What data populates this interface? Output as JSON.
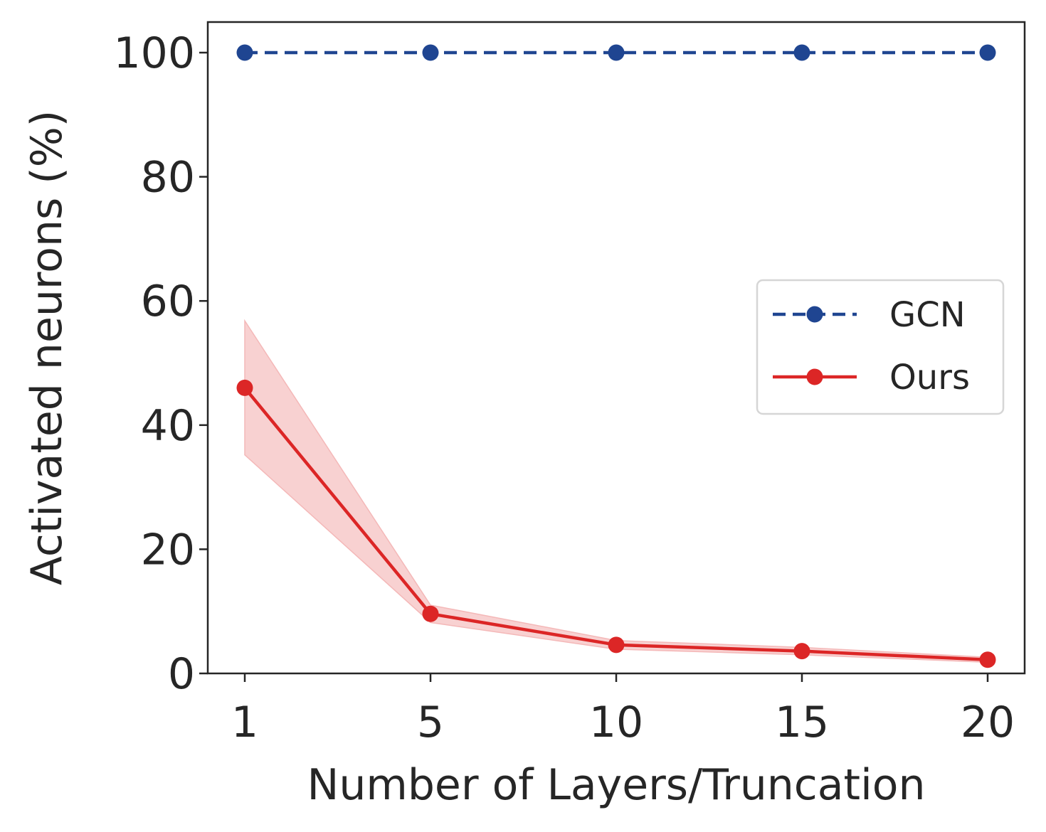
{
  "chart_data": {
    "type": "line",
    "title": "",
    "xlabel": "Number of Layers/Truncation",
    "ylabel": "Activated neurons (%)",
    "x_categories": [
      "1",
      "5",
      "10",
      "15",
      "20"
    ],
    "y_ticks": [
      "0",
      "20",
      "40",
      "60",
      "80",
      "100"
    ],
    "ylim": [
      0,
      105
    ],
    "grid": false,
    "legend_position": "center-right",
    "series": [
      {
        "name": "GCN",
        "color": "#1f4591",
        "line_style": "dashed",
        "marker": "circle",
        "values": [
          100,
          100,
          100,
          100,
          100
        ]
      },
      {
        "name": "Ours",
        "color": "#dc2626",
        "line_style": "solid",
        "marker": "circle",
        "values": [
          46.0,
          9.6,
          4.6,
          3.6,
          2.2
        ],
        "band_lower": [
          35.2,
          8.2,
          3.9,
          3.0,
          1.8
        ],
        "band_upper": [
          56.8,
          11.0,
          5.3,
          4.2,
          2.6
        ],
        "band_color": "#f4b8b8"
      }
    ]
  }
}
